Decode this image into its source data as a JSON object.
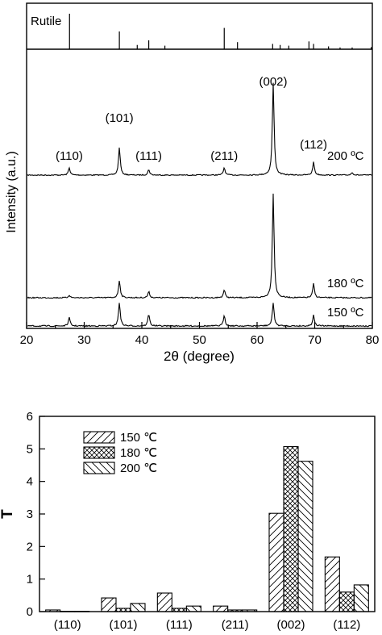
{
  "chart_data": [
    {
      "type": "line",
      "xlabel": "2θ (degree)",
      "ylabel": "Intensity (a.u.)",
      "xlim": [
        20,
        80
      ],
      "x_ticks": [
        "20",
        "30",
        "40",
        "50",
        "60",
        "70",
        "80"
      ],
      "reference": {
        "name": "Rutile",
        "peaks": [
          {
            "x": 27.45,
            "h": 1.0
          },
          {
            "x": 36.1,
            "h": 0.5
          },
          {
            "x": 39.2,
            "h": 0.12
          },
          {
            "x": 41.2,
            "h": 0.25
          },
          {
            "x": 44.0,
            "h": 0.1
          },
          {
            "x": 54.3,
            "h": 0.6
          },
          {
            "x": 56.6,
            "h": 0.2
          },
          {
            "x": 62.7,
            "h": 0.15
          },
          {
            "x": 64.0,
            "h": 0.12
          },
          {
            "x": 65.5,
            "h": 0.1
          },
          {
            "x": 69.0,
            "h": 0.22
          },
          {
            "x": 69.8,
            "h": 0.15
          },
          {
            "x": 72.4,
            "h": 0.08
          },
          {
            "x": 74.4,
            "h": 0.05
          },
          {
            "x": 76.5,
            "h": 0.05
          },
          {
            "x": 79.8,
            "h": 0.06
          }
        ]
      },
      "series": [
        {
          "name": "200 ºC",
          "peaks": [
            {
              "x": 27.4,
              "h": 0.08
            },
            {
              "x": 36.1,
              "h": 0.3
            },
            {
              "x": 41.2,
              "h": 0.06
            },
            {
              "x": 54.3,
              "h": 0.08
            },
            {
              "x": 62.8,
              "h": 1.0
            },
            {
              "x": 69.8,
              "h": 0.14
            },
            {
              "x": 76.5,
              "h": 0.03
            }
          ]
        },
        {
          "name": "180 ºC",
          "peaks": [
            {
              "x": 27.4,
              "h": 0.015
            },
            {
              "x": 36.1,
              "h": 0.1
            },
            {
              "x": 41.2,
              "h": 0.035
            },
            {
              "x": 54.3,
              "h": 0.045
            },
            {
              "x": 62.8,
              "h": 0.6
            },
            {
              "x": 69.8,
              "h": 0.08
            }
          ]
        },
        {
          "name": "150 ºC",
          "peaks": [
            {
              "x": 27.4,
              "h": 0.045
            },
            {
              "x": 36.1,
              "h": 0.13
            },
            {
              "x": 41.2,
              "h": 0.065
            },
            {
              "x": 54.3,
              "h": 0.06
            },
            {
              "x": 62.8,
              "h": 0.13
            },
            {
              "x": 69.8,
              "h": 0.06
            }
          ]
        }
      ],
      "peak_labels": [
        {
          "text": "(110)",
          "x": 27.4
        },
        {
          "text": "(101)",
          "x": 36.1
        },
        {
          "text": "(111)",
          "x": 41.2
        },
        {
          "text": "(211)",
          "x": 54.3
        },
        {
          "text": "(002)",
          "x": 62.8
        },
        {
          "text": "(112)",
          "x": 69.8
        }
      ]
    },
    {
      "type": "bar",
      "ylabel": "T",
      "ylim": [
        0,
        6
      ],
      "y_ticks": [
        "0",
        "1",
        "2",
        "3",
        "4",
        "5",
        "6"
      ],
      "categories": [
        "(110)",
        "(101)",
        "(111)",
        "(211)",
        "(002)",
        "(112)"
      ],
      "legend_position": "top-left",
      "series": [
        {
          "name": "150 ℃",
          "pattern": "diagonal-right",
          "values": [
            0.05,
            0.42,
            0.57,
            0.17,
            3.02,
            1.68
          ]
        },
        {
          "name": "180 ℃",
          "pattern": "crosshatch",
          "values": [
            0.01,
            0.1,
            0.1,
            0.05,
            5.07,
            0.6
          ]
        },
        {
          "name": "200 ℃",
          "pattern": "diagonal-left",
          "values": [
            0.01,
            0.25,
            0.17,
            0.05,
            4.62,
            0.82
          ]
        }
      ]
    }
  ]
}
